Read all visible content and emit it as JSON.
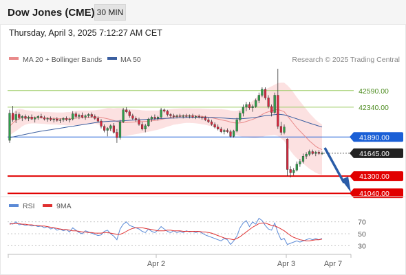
{
  "header": {
    "instrument": "Dow Jones (CME)",
    "timeframe": "30 MIN",
    "datetime": "Thursday, April 3, 2025 7:12:27 AM CET"
  },
  "legend": {
    "ma20": "MA 20 + Bollinger Bands",
    "ma50": "MA 50",
    "copyright": "Research © 2025 Trading Central",
    "rsi": "RSI",
    "ma9": "9MA"
  },
  "colors": {
    "up_candle": "#2e9e4a",
    "down_candle": "#d7263d",
    "bollinger_fill": "#fbdcdc",
    "ma20": "#e98a8a",
    "ma50": "#3b5fa0",
    "resistance": "#9ccc65",
    "pivot": "#1a5fd6",
    "support": "#e10000",
    "current": "#222222",
    "rsi": "#5b8ad6",
    "ma9": "#e03030",
    "arrow": "#2a5ca8"
  },
  "chart_data": {
    "type": "candlestick",
    "y_range": [
      40990,
      42920
    ],
    "levels": [
      {
        "name": "resistance-2",
        "value": 42590,
        "label": "42590.00",
        "style": "resistance"
      },
      {
        "name": "resistance-1",
        "value": 42340,
        "label": "42340.00",
        "style": "resistance"
      },
      {
        "name": "pivot",
        "value": 41890,
        "label": "41890.00",
        "style": "pivot"
      },
      {
        "name": "current",
        "value": 41645,
        "label": "41645.00",
        "style": "current"
      },
      {
        "name": "support-1",
        "value": 41300,
        "label": "41300.00",
        "style": "support"
      },
      {
        "name": "support-2",
        "value": 41040,
        "label": "41040.00",
        "style": "support"
      }
    ],
    "x_labels": [
      "Apr 2",
      "Apr 3",
      "Apr 7"
    ],
    "candles": [
      [
        41840,
        42300,
        41800,
        42250
      ],
      [
        42250,
        42360,
        42120,
        42150
      ],
      [
        42150,
        42280,
        42100,
        42230
      ],
      [
        42230,
        42260,
        42150,
        42180
      ],
      [
        42180,
        42220,
        42130,
        42200
      ],
      [
        42200,
        42230,
        42150,
        42170
      ],
      [
        42170,
        42210,
        42130,
        42190
      ],
      [
        42190,
        42230,
        42150,
        42160
      ],
      [
        42160,
        42200,
        42110,
        42180
      ],
      [
        42180,
        42220,
        42150,
        42200
      ],
      [
        42200,
        42240,
        42170,
        42180
      ],
      [
        42180,
        42210,
        42140,
        42160
      ],
      [
        42160,
        42190,
        42120,
        42170
      ],
      [
        42170,
        42200,
        42130,
        42150
      ],
      [
        42150,
        42180,
        42110,
        42160
      ],
      [
        42160,
        42190,
        42120,
        42140
      ],
      [
        42140,
        42170,
        42100,
        42150
      ],
      [
        42150,
        42190,
        42120,
        42170
      ],
      [
        42170,
        42200,
        42130,
        42150
      ],
      [
        42150,
        42180,
        42110,
        42160
      ],
      [
        42160,
        42280,
        42140,
        42240
      ],
      [
        42240,
        42270,
        42170,
        42200
      ],
      [
        42200,
        42240,
        42160,
        42220
      ],
      [
        42220,
        42260,
        42170,
        42190
      ],
      [
        42190,
        42230,
        42150,
        42210
      ],
      [
        42210,
        42250,
        42180,
        42230
      ],
      [
        42230,
        42260,
        42180,
        42200
      ],
      [
        42200,
        42230,
        42150,
        42170
      ],
      [
        42170,
        42200,
        42110,
        42130
      ],
      [
        42130,
        42160,
        42020,
        42050
      ],
      [
        42050,
        42080,
        41960,
        41990
      ],
      [
        41990,
        42040,
        41900,
        42020
      ],
      [
        42020,
        42080,
        41980,
        42060
      ],
      [
        42060,
        42100,
        41940,
        41960
      ],
      [
        41960,
        42010,
        41800,
        41880
      ],
      [
        41880,
        42150,
        41850,
        42120
      ],
      [
        42120,
        42330,
        42100,
        42300
      ],
      [
        42300,
        42340,
        42250,
        42270
      ],
      [
        42270,
        42300,
        42180,
        42210
      ],
      [
        42210,
        42240,
        42150,
        42170
      ],
      [
        42170,
        42200,
        42120,
        42150
      ],
      [
        42150,
        42180,
        42060,
        42080
      ],
      [
        42080,
        42120,
        41990,
        42010
      ],
      [
        42010,
        42090,
        41960,
        42060
      ],
      [
        42060,
        42180,
        42040,
        42160
      ],
      [
        42160,
        42210,
        42120,
        42190
      ],
      [
        42190,
        42230,
        42150,
        42170
      ],
      [
        42170,
        42210,
        42140,
        42190
      ],
      [
        42190,
        42330,
        42170,
        42300
      ],
      [
        42300,
        42320,
        42260,
        42280
      ],
      [
        42280,
        42300,
        42200,
        42230
      ],
      [
        42230,
        42250,
        42180,
        42210
      ],
      [
        42210,
        42240,
        42170,
        42200
      ],
      [
        42200,
        42230,
        42170,
        42210
      ],
      [
        42210,
        42240,
        42180,
        42200
      ],
      [
        42200,
        42230,
        42170,
        42210
      ],
      [
        42210,
        42240,
        42180,
        42200
      ],
      [
        42200,
        42230,
        42170,
        42210
      ],
      [
        42210,
        42240,
        42170,
        42190
      ],
      [
        42190,
        42220,
        42160,
        42200
      ],
      [
        42200,
        42230,
        42170,
        42190
      ],
      [
        42190,
        42210,
        42150,
        42180
      ],
      [
        42180,
        42210,
        42130,
        42150
      ],
      [
        42150,
        42180,
        42100,
        42120
      ],
      [
        42120,
        42150,
        42060,
        42080
      ],
      [
        42080,
        42110,
        42020,
        42040
      ],
      [
        42040,
        42080,
        41990,
        42010
      ],
      [
        42010,
        42040,
        41950,
        41970
      ],
      [
        41970,
        42010,
        41930,
        41990
      ],
      [
        41990,
        42020,
        41950,
        41970
      ],
      [
        41970,
        42000,
        41880,
        41900
      ],
      [
        41900,
        42000,
        41880,
        41980
      ],
      [
        41980,
        42180,
        41960,
        42150
      ],
      [
        42150,
        42280,
        42120,
        42250
      ],
      [
        42250,
        42380,
        42200,
        42340
      ],
      [
        42340,
        42420,
        42280,
        42380
      ],
      [
        42380,
        42420,
        42300,
        42330
      ],
      [
        42330,
        42380,
        42270,
        42350
      ],
      [
        42350,
        42470,
        42330,
        42440
      ],
      [
        42440,
        42560,
        42400,
        42520
      ],
      [
        42520,
        42640,
        42490,
        42610
      ],
      [
        42610,
        42640,
        42450,
        42480
      ],
      [
        42480,
        42520,
        42320,
        42350
      ],
      [
        42350,
        42380,
        42200,
        42260
      ],
      [
        42260,
        42560,
        42240,
        42520
      ],
      [
        42520,
        42920,
        42010,
        42050
      ],
      [
        42050,
        42120,
        41920,
        41960
      ],
      [
        41960,
        42080,
        41930,
        42040
      ],
      [
        41860,
        41870,
        41300,
        41400
      ],
      [
        41400,
        41450,
        41280,
        41350
      ],
      [
        41350,
        41420,
        41310,
        41390
      ],
      [
        41390,
        41520,
        41370,
        41480
      ],
      [
        41480,
        41560,
        41440,
        41520
      ],
      [
        41520,
        41640,
        41490,
        41600
      ],
      [
        41600,
        41660,
        41560,
        41630
      ],
      [
        41630,
        41700,
        41600,
        41670
      ],
      [
        41670,
        41700,
        41620,
        41640
      ],
      [
        41640,
        41680,
        41600,
        41660
      ],
      [
        41660,
        41690,
        41620,
        41640
      ],
      [
        41640,
        41670,
        41620,
        41645
      ]
    ],
    "ma20": [
      42050,
      42100,
      42140,
      42165,
      42180,
      42185,
      42190,
      42190,
      42185,
      42182,
      42180,
      42178,
      42175,
      42172,
      42170,
      42168,
      42165,
      42165,
      42165,
      42165,
      42170,
      42175,
      42180,
      42182,
      42185,
      42188,
      42190,
      42192,
      42190,
      42185,
      42175,
      42165,
      42155,
      42140,
      42125,
      42115,
      42110,
      42110,
      42112,
      42115,
      42118,
      42120,
      42122,
      42125,
      42130,
      42135,
      42140,
      42145,
      42155,
      42165,
      42175,
      42185,
      42195,
      42200,
      42205,
      42210,
      42212,
      42212,
      42210,
      42208,
      42205,
      42200,
      42195,
      42188,
      42180,
      42170,
      42160,
      42150,
      42140,
      42130,
      42115,
      42105,
      42100,
      42102,
      42110,
      42125,
      42140,
      42155,
      42175,
      42200,
      42230,
      42255,
      42270,
      42285,
      42300,
      42305,
      42290,
      42270,
      42210,
      42150,
      42090,
      42030,
      41980,
      41930,
      41880,
      41830,
      41790,
      41750,
      41720,
      41700
    ],
    "ma50": [
      41880,
      41890,
      41900,
      41910,
      41920,
      41930,
      41940,
      41950,
      41960,
      41970,
      41978,
      41985,
      41992,
      42000,
      42008,
      42015,
      42022,
      42030,
      42038,
      42045,
      42052,
      42060,
      42068,
      42075,
      42082,
      42090,
      42098,
      42105,
      42112,
      42118,
      42122,
      42125,
      42128,
      42130,
      42130,
      42132,
      42135,
      42138,
      42142,
      42145,
      42148,
      42150,
      42152,
      42155,
      42158,
      42160,
      42162,
      42165,
      42168,
      42170,
      42172,
      42174,
      42176,
      42178,
      42180,
      42182,
      42184,
      42186,
      42187,
      42188,
      42188,
      42188,
      42187,
      42186,
      42185,
      42183,
      42181,
      42178,
      42175,
      42172,
      42168,
      42166,
      42165,
      42166,
      42168,
      42172,
      42176,
      42180,
      42186,
      42194,
      42204,
      42212,
      42218,
      42222,
      42228,
      42232,
      42230,
      42224,
      42210,
      42196,
      42180,
      42164,
      42148,
      42132,
      42116,
      42100,
      42085,
      42070,
      42055,
      42040
    ],
    "bb_width": [
      140,
      150,
      160,
      150,
      130,
      110,
      100,
      95,
      90,
      90,
      90,
      90,
      92,
      92,
      92,
      92,
      95,
      95,
      100,
      100,
      105,
      110,
      110,
      108,
      105,
      100,
      100,
      100,
      110,
      120,
      140,
      160,
      170,
      180,
      200,
      210,
      210,
      205,
      195,
      190,
      185,
      180,
      170,
      165,
      160,
      155,
      150,
      145,
      140,
      135,
      130,
      125,
      120,
      118,
      115,
      112,
      110,
      110,
      110,
      112,
      115,
      118,
      120,
      125,
      130,
      140,
      150,
      160,
      165,
      170,
      175,
      180,
      185,
      200,
      220,
      240,
      260,
      280,
      300,
      320,
      340,
      350,
      360,
      370,
      380,
      400,
      420,
      440,
      460,
      470,
      470,
      460,
      450,
      440,
      430,
      420,
      410,
      400,
      390,
      380
    ],
    "rsi": {
      "ticks": [
        70,
        50,
        30
      ],
      "rsi": [
        68,
        66,
        70,
        65,
        66,
        64,
        65,
        63,
        64,
        62,
        63,
        60,
        62,
        58,
        60,
        56,
        58,
        55,
        57,
        53,
        60,
        56,
        52,
        50,
        55,
        53,
        51,
        49,
        47,
        48,
        54,
        56,
        50,
        46,
        40,
        58,
        66,
        70,
        64,
        62,
        60,
        58,
        54,
        52,
        58,
        54,
        52,
        56,
        62,
        58,
        54,
        52,
        55,
        52,
        54,
        52,
        55,
        53,
        54,
        52,
        54,
        51,
        48,
        46,
        44,
        42,
        40,
        38,
        42,
        40,
        32,
        38,
        46,
        60,
        68,
        72,
        62,
        70,
        66,
        76,
        72,
        64,
        58,
        56,
        68,
        52,
        40,
        42,
        32,
        34,
        36,
        38,
        36,
        38,
        40,
        42,
        40,
        42,
        40,
        42
      ],
      "ma9": [
        66,
        67,
        67,
        67,
        66,
        66,
        65,
        65,
        64,
        64,
        63,
        63,
        62,
        61,
        60,
        59,
        58,
        57,
        57,
        56,
        55,
        55,
        54,
        53,
        53,
        52,
        52,
        51,
        51,
        51,
        52,
        52,
        51,
        50,
        49,
        49,
        51,
        54,
        57,
        59,
        60,
        60,
        60,
        59,
        58,
        57,
        56,
        55,
        55,
        55,
        56,
        56,
        55,
        55,
        55,
        54,
        54,
        54,
        54,
        54,
        54,
        53,
        53,
        52,
        51,
        49,
        47,
        45,
        43,
        42,
        41,
        40,
        42,
        45,
        49,
        53,
        57,
        61,
        64,
        67,
        68,
        68,
        66,
        64,
        63,
        61,
        58,
        55,
        51,
        47,
        44,
        42,
        40,
        39,
        38,
        38,
        39,
        40,
        40,
        41
      ]
    }
  }
}
